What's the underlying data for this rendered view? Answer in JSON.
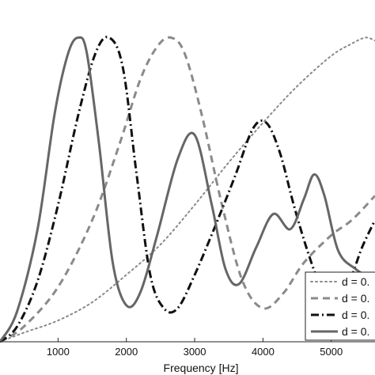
{
  "chart_data": {
    "type": "line",
    "title": "",
    "xlabel": "Frequency [Hz]",
    "ylabel": "",
    "xlim": [
      150,
      5640
    ],
    "ylim": [
      0.0,
      1.03
    ],
    "x_ticks": [
      1000,
      2000,
      3000,
      4000,
      5000
    ],
    "x_tick_labels": [
      "1000",
      "2000",
      "3000",
      "4000",
      "5000"
    ],
    "grid": false,
    "legend_position": "bottom-right",
    "series": [
      {
        "name": "d = 0.",
        "style": "dotted",
        "color": "#8a8a8a",
        "x": [
          150,
          500,
          1000,
          1500,
          2000,
          2500,
          3000,
          3500,
          4000,
          4500,
          5000,
          5300,
          5500,
          5640
        ],
        "y": [
          0.0,
          0.03,
          0.07,
          0.13,
          0.22,
          0.32,
          0.45,
          0.59,
          0.72,
          0.84,
          0.94,
          0.98,
          1.0,
          0.99
        ]
      },
      {
        "name": "d = 0.",
        "style": "dashed",
        "color": "#8a8a8a",
        "x": [
          150,
          500,
          1000,
          1500,
          1900,
          2200,
          2450,
          2650,
          2850,
          3100,
          3400,
          3700,
          4000,
          4300,
          4600,
          5000,
          5300,
          5640
        ],
        "y": [
          0.0,
          0.05,
          0.18,
          0.4,
          0.65,
          0.86,
          0.97,
          1.0,
          0.95,
          0.75,
          0.45,
          0.2,
          0.11,
          0.16,
          0.26,
          0.35,
          0.4,
          0.48
        ]
      },
      {
        "name": "d = 0.",
        "style": "dashdot",
        "color": "#111111",
        "x": [
          150,
          400,
          700,
          1000,
          1300,
          1550,
          1750,
          1950,
          2150,
          2350,
          2550,
          2750,
          3000,
          3300,
          3600,
          3850,
          4050,
          4250,
          4450,
          4650,
          4850,
          5050,
          5250,
          5450,
          5640
        ],
        "y": [
          0.0,
          0.05,
          0.2,
          0.45,
          0.75,
          0.95,
          1.0,
          0.9,
          0.55,
          0.22,
          0.11,
          0.11,
          0.22,
          0.38,
          0.55,
          0.7,
          0.72,
          0.62,
          0.45,
          0.3,
          0.18,
          0.14,
          0.19,
          0.31,
          0.4
        ]
      },
      {
        "name": "d = 0.",
        "style": "solid",
        "color": "#666666",
        "x": [
          150,
          400,
          700,
          950,
          1150,
          1300,
          1420,
          1600,
          1800,
          2000,
          2200,
          2450,
          2750,
          3000,
          3250,
          3450,
          3650,
          3900,
          4150,
          4400,
          4600,
          4750,
          4900,
          5100,
          5350,
          5640
        ],
        "y": [
          0.0,
          0.1,
          0.37,
          0.75,
          0.95,
          1.0,
          0.95,
          0.65,
          0.26,
          0.12,
          0.16,
          0.35,
          0.6,
          0.68,
          0.45,
          0.24,
          0.19,
          0.31,
          0.42,
          0.37,
          0.47,
          0.55,
          0.48,
          0.3,
          0.24,
          0.2
        ]
      }
    ]
  }
}
